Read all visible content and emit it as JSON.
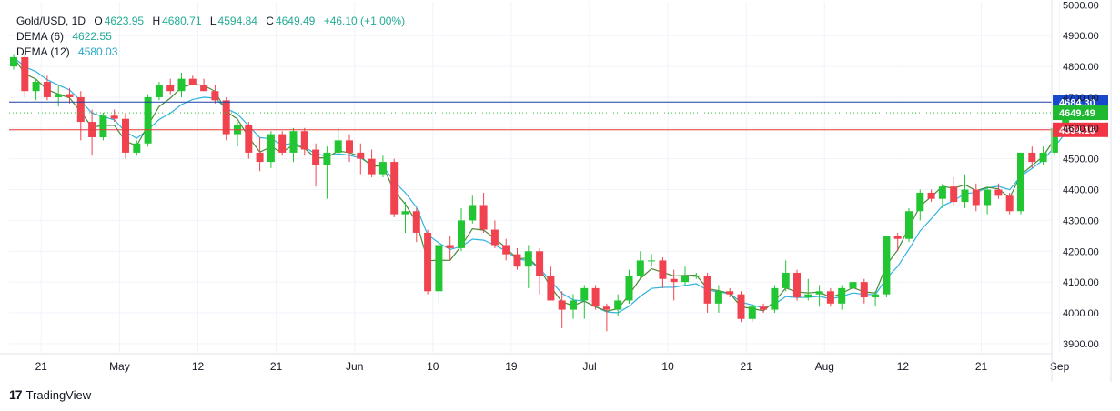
{
  "legend": {
    "symbol": "Gold/USD, 1D",
    "o_label": "O",
    "o_value": "4623.95",
    "h_label": "H",
    "h_value": "4680.71",
    "l_label": "L",
    "l_value": "4594.84",
    "c_label": "C",
    "c_value": "4649.49",
    "change": "+46.10 (+1.00%)",
    "dema6_label": "DEMA (6)",
    "dema6_value": "4622.55",
    "dema12_label": "DEMA (12)",
    "dema12_value": "4580.03"
  },
  "brand": {
    "logo_text": "17",
    "name": "TradingView"
  },
  "colors": {
    "up": "#22c532",
    "down": "#f1434f",
    "dema6": "#4a8a3a",
    "dema12": "#2fb3e0",
    "hline_blue": "#1c3fa8",
    "hline_red": "#e53935",
    "grid": "#f0f3fa",
    "axis_text": "#131722"
  },
  "chart_data": {
    "type": "candlestick",
    "title": "Gold/USD, 1D",
    "ylim": [
      3870,
      5010
    ],
    "y_ticks": [
      3900,
      4000,
      4100,
      4200,
      4300,
      4400,
      4500,
      4600,
      4700,
      4800,
      4900,
      5000
    ],
    "y_tick_labels": [
      "3900.00",
      "4000.00",
      "4100.00",
      "4200.00",
      "4300.00",
      "4400.00",
      "4500.00",
      "4600.00",
      "4700.00",
      "4800.00",
      "4900.00",
      "5000.00"
    ],
    "x_tick_labels": [
      {
        "label": "21",
        "bar": 1
      },
      {
        "label": "May",
        "bar": 8
      },
      {
        "label": "12",
        "bar": 15
      },
      {
        "label": "21",
        "bar": 22
      },
      {
        "label": "Jun",
        "bar": 29
      },
      {
        "label": "10",
        "bar": 36
      },
      {
        "label": "19",
        "bar": 43
      },
      {
        "label": "Jul",
        "bar": 50
      },
      {
        "label": "10",
        "bar": 57
      },
      {
        "label": "21",
        "bar": 64
      },
      {
        "label": "Aug",
        "bar": 71
      },
      {
        "label": "12",
        "bar": 78
      },
      {
        "label": "21",
        "bar": 85
      },
      {
        "label": "Sep",
        "bar": 92
      }
    ],
    "price_lines": [
      {
        "value": 4684.3,
        "label": "4684.30",
        "kind": "blue"
      },
      {
        "value": 4649.49,
        "label": "4649.49",
        "kind": "last"
      },
      {
        "value": 4594.16,
        "label": "4594.16",
        "kind": "red"
      }
    ],
    "ohlc": [
      [
        4800,
        4840,
        4790,
        4830
      ],
      [
        4830,
        4840,
        4700,
        4720
      ],
      [
        4720,
        4760,
        4690,
        4750
      ],
      [
        4750,
        4770,
        4690,
        4700
      ],
      [
        4700,
        4740,
        4670,
        4710
      ],
      [
        4710,
        4730,
        4680,
        4700
      ],
      [
        4700,
        4720,
        4560,
        4620
      ],
      [
        4620,
        4660,
        4510,
        4570
      ],
      [
        4570,
        4650,
        4560,
        4640
      ],
      [
        4640,
        4660,
        4620,
        4630
      ],
      [
        4630,
        4650,
        4500,
        4520
      ],
      [
        4520,
        4560,
        4510,
        4550
      ],
      [
        4550,
        4710,
        4540,
        4700
      ],
      [
        4700,
        4750,
        4690,
        4740
      ],
      [
        4740,
        4760,
        4710,
        4720
      ],
      [
        4720,
        4780,
        4700,
        4760
      ],
      [
        4760,
        4770,
        4740,
        4740
      ],
      [
        4740,
        4760,
        4720,
        4720
      ],
      [
        4720,
        4740,
        4680,
        4690
      ],
      [
        4690,
        4700,
        4560,
        4580
      ],
      [
        4580,
        4620,
        4540,
        4610
      ],
      [
        4610,
        4620,
        4500,
        4520
      ],
      [
        4520,
        4570,
        4460,
        4490
      ],
      [
        4490,
        4590,
        4470,
        4580
      ],
      [
        4580,
        4590,
        4510,
        4520
      ],
      [
        4520,
        4600,
        4490,
        4590
      ],
      [
        4590,
        4600,
        4510,
        4530
      ],
      [
        4530,
        4550,
        4410,
        4480
      ],
      [
        4480,
        4540,
        4370,
        4520
      ],
      [
        4520,
        4600,
        4510,
        4560
      ],
      [
        4560,
        4580,
        4490,
        4520
      ],
      [
        4520,
        4550,
        4450,
        4500
      ],
      [
        4500,
        4530,
        4440,
        4450
      ],
      [
        4450,
        4510,
        4440,
        4490
      ],
      [
        4490,
        4500,
        4310,
        4320
      ],
      [
        4320,
        4360,
        4260,
        4330
      ],
      [
        4330,
        4340,
        4230,
        4260
      ],
      [
        4260,
        4270,
        4060,
        4070
      ],
      [
        4070,
        4230,
        4030,
        4220
      ],
      [
        4220,
        4250,
        4170,
        4210
      ],
      [
        4210,
        4340,
        4200,
        4300
      ],
      [
        4300,
        4380,
        4290,
        4350
      ],
      [
        4350,
        4390,
        4260,
        4270
      ],
      [
        4270,
        4300,
        4210,
        4220
      ],
      [
        4220,
        4240,
        4170,
        4190
      ],
      [
        4190,
        4210,
        4140,
        4150
      ],
      [
        4150,
        4220,
        4080,
        4200
      ],
      [
        4200,
        4210,
        4060,
        4120
      ],
      [
        4120,
        4150,
        4040,
        4040
      ],
      [
        4040,
        4070,
        3950,
        4010
      ],
      [
        4010,
        4060,
        3980,
        4040
      ],
      [
        4040,
        4090,
        3980,
        4080
      ],
      [
        4080,
        4090,
        4010,
        4020
      ],
      [
        4020,
        4030,
        3940,
        4010
      ],
      [
        4010,
        4060,
        3990,
        4040
      ],
      [
        4040,
        4140,
        4030,
        4120
      ],
      [
        4120,
        4200,
        4110,
        4170
      ],
      [
        4170,
        4190,
        4150,
        4170
      ],
      [
        4170,
        4180,
        4080,
        4110
      ],
      [
        4110,
        4140,
        4040,
        4100
      ],
      [
        4100,
        4150,
        4090,
        4120
      ],
      [
        4120,
        4130,
        4110,
        4120
      ],
      [
        4120,
        4130,
        4000,
        4030
      ],
      [
        4030,
        4090,
        4000,
        4070
      ],
      [
        4070,
        4080,
        4050,
        4060
      ],
      [
        4060,
        4070,
        3970,
        3980
      ],
      [
        3980,
        4030,
        3970,
        4020
      ],
      [
        4020,
        4030,
        4000,
        4010
      ],
      [
        4010,
        4090,
        4000,
        4080
      ],
      [
        4080,
        4170,
        4070,
        4130
      ],
      [
        4130,
        4140,
        4040,
        4050
      ],
      [
        4050,
        4110,
        4040,
        4060
      ],
      [
        4060,
        4090,
        4020,
        4070
      ],
      [
        4070,
        4080,
        4020,
        4030
      ],
      [
        4030,
        4090,
        4010,
        4080
      ],
      [
        4080,
        4110,
        4050,
        4100
      ],
      [
        4100,
        4110,
        4030,
        4050
      ],
      [
        4050,
        4070,
        4020,
        4060
      ],
      [
        4060,
        4250,
        4050,
        4250
      ],
      [
        4250,
        4260,
        4200,
        4240
      ],
      [
        4240,
        4340,
        4230,
        4330
      ],
      [
        4330,
        4400,
        4300,
        4390
      ],
      [
        4390,
        4400,
        4360,
        4370
      ],
      [
        4370,
        4420,
        4340,
        4410
      ],
      [
        4410,
        4440,
        4350,
        4360
      ],
      [
        4360,
        4450,
        4340,
        4400
      ],
      [
        4400,
        4420,
        4330,
        4350
      ],
      [
        4350,
        4410,
        4320,
        4400
      ],
      [
        4400,
        4420,
        4370,
        4380
      ],
      [
        4380,
        4390,
        4320,
        4330
      ],
      [
        4330,
        4520,
        4320,
        4520
      ],
      [
        4520,
        4540,
        4470,
        4490
      ],
      [
        4490,
        4540,
        4480,
        4520
      ],
      [
        4520,
        4610,
        4510,
        4600
      ],
      [
        4600,
        4680,
        4590,
        4650
      ]
    ],
    "dema6": [],
    "dema12": []
  }
}
